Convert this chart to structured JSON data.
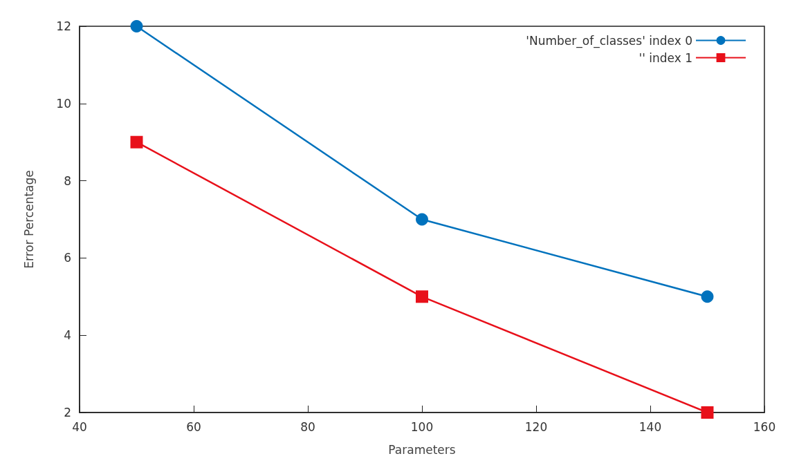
{
  "chart_data": {
    "type": "line",
    "xlabel": "Parameters",
    "ylabel": "Error Percentage",
    "x": [
      50,
      100,
      150
    ],
    "series": [
      {
        "name": "'Number_of_classes' index 0",
        "color": "#0072bd",
        "marker": "circle",
        "values": [
          12,
          7,
          5
        ]
      },
      {
        "name": "'' index 1",
        "color": "#e8101a",
        "marker": "square",
        "values": [
          9,
          5,
          2
        ]
      }
    ],
    "xlim": [
      40,
      160
    ],
    "xticks": [
      40,
      60,
      80,
      100,
      120,
      140,
      160
    ],
    "ylim": [
      2,
      12
    ],
    "yticks": [
      2,
      4,
      6,
      8,
      10,
      12
    ],
    "grid": false,
    "legend": "top right",
    "line_style": "solid"
  }
}
